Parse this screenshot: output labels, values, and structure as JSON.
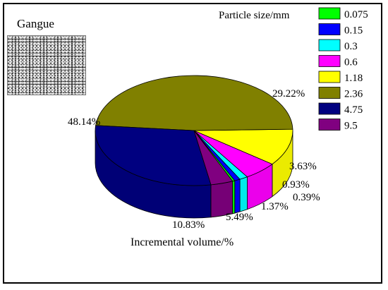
{
  "photo_label": "Gangue",
  "chart_data": {
    "type": "pie",
    "legend_title": "Particle size/mm",
    "xlabel": "Incremental volume/%",
    "categories": [
      "0.075",
      "0.15",
      "0.3",
      "0.6",
      "1.18",
      "2.36",
      "4.75",
      "9.5"
    ],
    "values": [
      0.39,
      0.93,
      1.37,
      5.49,
      10.83,
      48.14,
      29.22,
      3.63
    ],
    "value_labels": [
      "0.39%",
      "0.93%",
      "1.37%",
      "5.49%",
      "10.83%",
      "48.14%",
      "29.22%",
      "3.63%"
    ],
    "colors": [
      "#00FF00",
      "#0000FF",
      "#00FFFF",
      "#FF00FF",
      "#FFFF00",
      "#808000",
      "#000080",
      "#800080"
    ],
    "style": "3d",
    "legend_position": "top-right"
  }
}
